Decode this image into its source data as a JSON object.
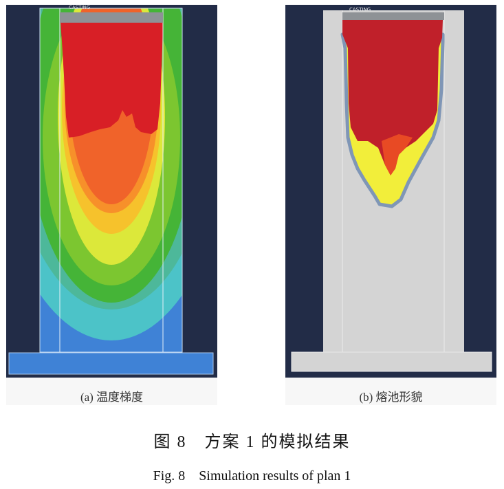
{
  "panels": [
    {
      "id": "a",
      "label_text": "CASTING",
      "caption": "(a) 温度梯度"
    },
    {
      "id": "b",
      "label_text": "CASTING",
      "caption": "(b) 熔池形貌"
    }
  ],
  "figure": {
    "title_cn": "图 8　方案 1 的模拟结果",
    "title_en": "Fig. 8　Simulation results of plan 1"
  },
  "colors": {
    "background": "#222c47",
    "temperature_scale_hot_to_cold": [
      "#d81f26",
      "#f0632a",
      "#f7902a",
      "#f6c22c",
      "#dce83a",
      "#7cc630",
      "#45b437",
      "#4db89a",
      "#4cc3c8",
      "#3f82d6"
    ],
    "mold": "#d4d4d4",
    "melt_pool": "#c0202a",
    "mushy_zone": "#f2ee3a"
  }
}
